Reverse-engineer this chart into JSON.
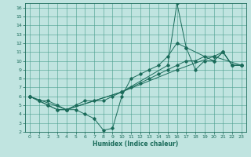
{
  "xlabel": "Humidex (Indice chaleur)",
  "bg_color": "#c0e4e0",
  "grid_color": "#4a9e8e",
  "line_color": "#1a6b5a",
  "spine_color": "#1a6b5a",
  "xlim": [
    -0.5,
    23.5
  ],
  "ylim": [
    2,
    16.5
  ],
  "xticks": [
    0,
    1,
    2,
    3,
    4,
    5,
    6,
    7,
    8,
    9,
    10,
    11,
    12,
    13,
    14,
    15,
    16,
    17,
    18,
    19,
    20,
    21,
    22,
    23
  ],
  "yticks": [
    2,
    3,
    4,
    5,
    6,
    7,
    8,
    9,
    10,
    11,
    12,
    13,
    14,
    15,
    16
  ],
  "tick_fontsize": 4.5,
  "xlabel_fontsize": 5.5,
  "line1_x": [
    0,
    1,
    2,
    3,
    4,
    5,
    6,
    7,
    8,
    9,
    10,
    11,
    12,
    13,
    14,
    15,
    16,
    17,
    18,
    19,
    20,
    21,
    22,
    23
  ],
  "line1_y": [
    6,
    5.5,
    5,
    4.5,
    4.5,
    4.5,
    4,
    3.5,
    2.2,
    2.4,
    6,
    8,
    8.5,
    9,
    9.5,
    10.5,
    12,
    11.5,
    9,
    10,
    10,
    11,
    9.5,
    9.5
  ],
  "line2_x": [
    0,
    1,
    2,
    3,
    4,
    5,
    6,
    7,
    8,
    9,
    10,
    11,
    12,
    13,
    14,
    15,
    16,
    17,
    18,
    19,
    20,
    21,
    22,
    23
  ],
  "line2_y": [
    6,
    5.5,
    5.5,
    5,
    4.5,
    5,
    5.5,
    5.5,
    5.5,
    6,
    6.5,
    7,
    7.5,
    8,
    8.5,
    9,
    9.5,
    10,
    10,
    10.5,
    10.5,
    11,
    9.5,
    9.5
  ],
  "line3_x": [
    0,
    1,
    2,
    3,
    4,
    10,
    15,
    16,
    17,
    20,
    21,
    22,
    23
  ],
  "line3_y": [
    6,
    5.5,
    5,
    4.5,
    4.5,
    6.5,
    9.5,
    16.5,
    11.5,
    10,
    11,
    9.5,
    9.5
  ],
  "line4_x": [
    0,
    4,
    10,
    16,
    20,
    23
  ],
  "line4_y": [
    6,
    4.5,
    6.5,
    9,
    10.5,
    9.5
  ]
}
